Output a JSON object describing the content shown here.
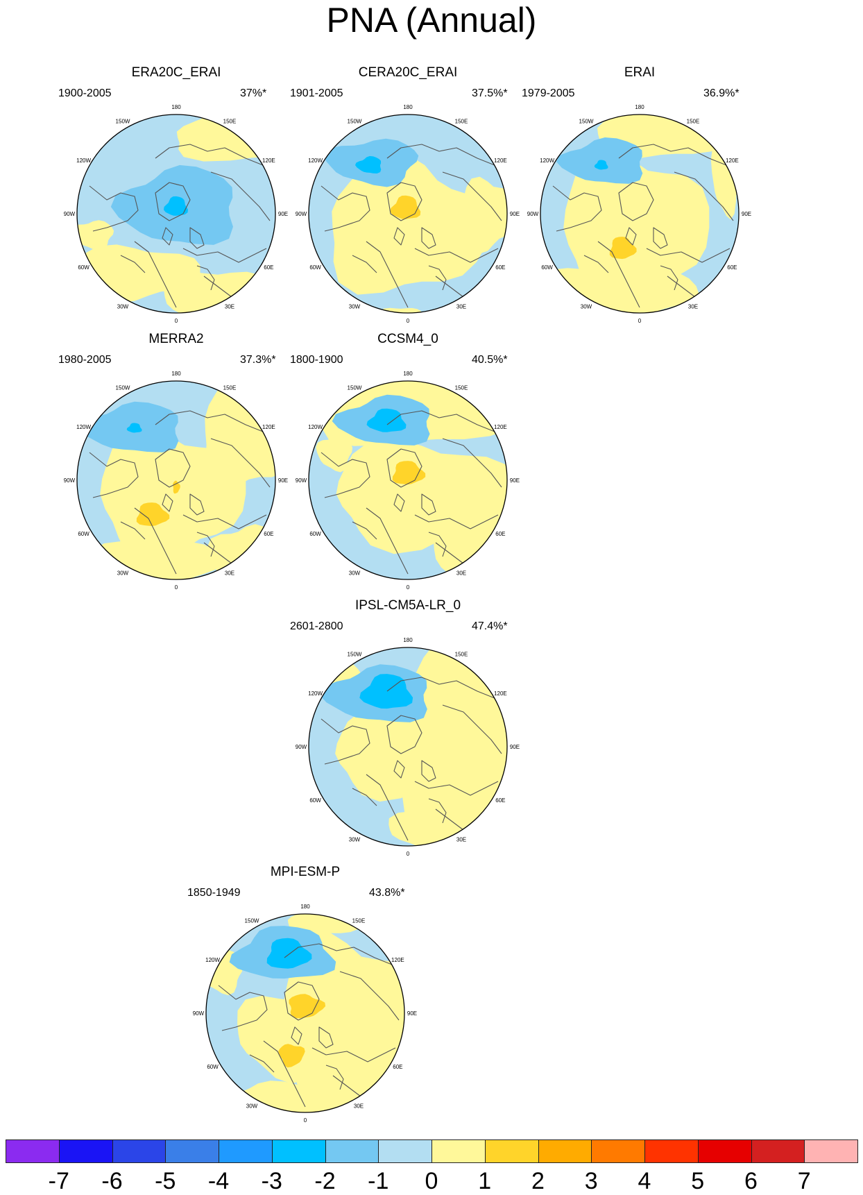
{
  "figure": {
    "title": "PNA (Annual)",
    "lon_labels": [
      "180",
      "150E",
      "120E",
      "90E",
      "60E",
      "30E",
      "0",
      "30W",
      "60W",
      "90W",
      "120W",
      "150W"
    ]
  },
  "panels": [
    {
      "title": "ERA20C_ERAI",
      "period": "1900-2005",
      "variance": "37%*"
    },
    {
      "title": "CERA20C_ERAI",
      "period": "1901-2005",
      "variance": "37.5%*"
    },
    {
      "title": "ERAI",
      "period": "1979-2005",
      "variance": "36.9%*"
    },
    {
      "title": "MERRA2",
      "period": "1980-2005",
      "variance": "37.3%*"
    },
    {
      "title": "CCSM4_0",
      "period": "1800-1900",
      "variance": "40.5%*"
    },
    {
      "title": "IPSL-CM5A-LR_0",
      "period": "2601-2800",
      "variance": "47.4%*"
    },
    {
      "title": "MPI-ESM-P",
      "period": "1850-1949",
      "variance": "43.8%*"
    }
  ],
  "colorbar": {
    "labels": [
      "-7",
      "-6",
      "-5",
      "-4",
      "-3",
      "-2",
      "-1",
      "0",
      "1",
      "2",
      "3",
      "4",
      "5",
      "6",
      "7"
    ],
    "colors": [
      "#8b2bf0",
      "#1a14f5",
      "#2b45e8",
      "#3a7fe8",
      "#1f9aff",
      "#00c0ff",
      "#74c8f2",
      "#b3def2",
      "#fff89a",
      "#ffd42a",
      "#ffab00",
      "#ff7a00",
      "#ff3300",
      "#e60000",
      "#d42020",
      "#ffb3b3"
    ]
  },
  "chart_data": {
    "type": "heatmap",
    "title": "PNA (Annual)",
    "projection": "north polar stereographic",
    "colorbar_levels": [
      -7,
      -6,
      -5,
      -4,
      -3,
      -2,
      -1,
      0,
      1,
      2,
      3,
      4,
      5,
      6,
      7
    ],
    "series": [
      {
        "name": "ERA20C_ERAI",
        "period": "1900-2005",
        "variance_explained": "37%*"
      },
      {
        "name": "CERA20C_ERAI",
        "period": "1901-2005",
        "variance_explained": "37.5%*"
      },
      {
        "name": "ERAI",
        "period": "1979-2005",
        "variance_explained": "36.9%*"
      },
      {
        "name": "MERRA2",
        "period": "1980-2005",
        "variance_explained": "37.3%*"
      },
      {
        "name": "CCSM4_0",
        "period": "1800-1900",
        "variance_explained": "40.5%*"
      },
      {
        "name": "IPSL-CM5A-LR_0",
        "period": "2601-2800",
        "variance_explained": "47.4%*"
      },
      {
        "name": "MPI-ESM-P",
        "period": "1850-1949",
        "variance_explained": "43.8%*"
      }
    ]
  }
}
